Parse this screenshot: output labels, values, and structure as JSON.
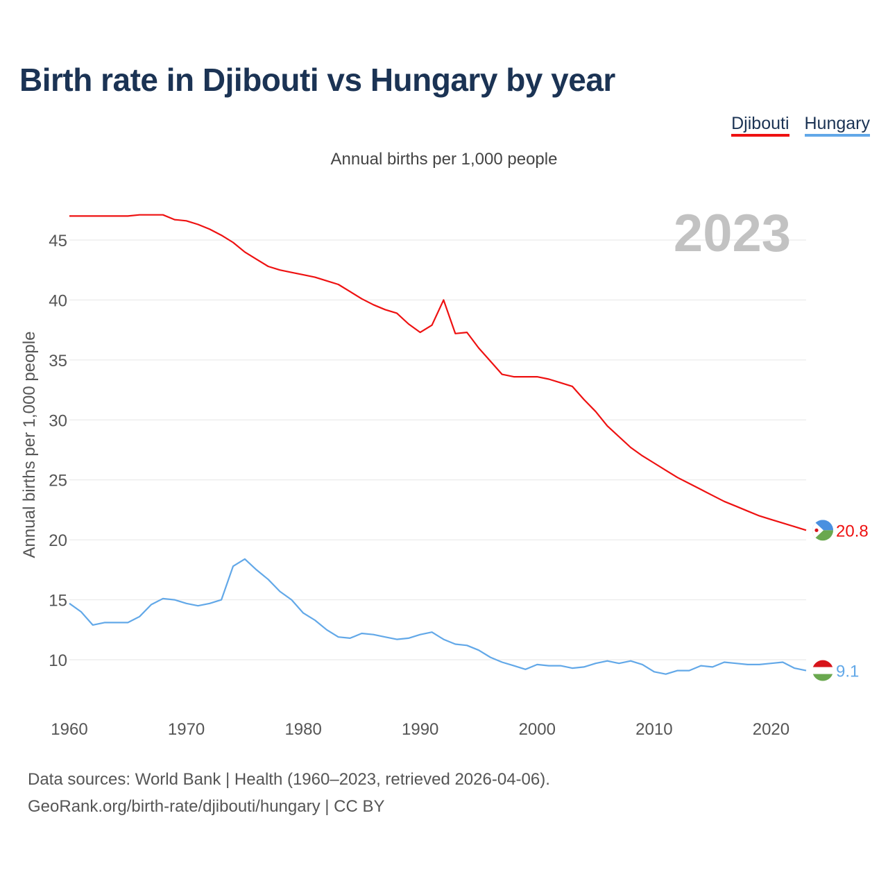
{
  "title": "Birth rate in Djibouti vs Hungary by year",
  "subtitle": "Annual births per 1,000 people",
  "legend": [
    {
      "name": "Djibouti",
      "color": "#ee1111"
    },
    {
      "name": "Hungary",
      "color": "#62a8e8"
    }
  ],
  "footer": {
    "line1": "Data sources: World Bank | Health (1960–2023, retrieved 2026-04-06).",
    "line2": "GeoRank.org/birth-rate/djibouti/hungary | CC BY"
  },
  "chart_data": {
    "type": "line",
    "title": "Birth rate in Djibouti vs Hungary by year",
    "subtitle": "Annual births per 1,000 people",
    "xlabel": "",
    "ylabel": "Annual births per 1,000 people",
    "year_label": "2023",
    "xlim": [
      1960,
      2023
    ],
    "ylim": [
      5,
      48
    ],
    "yticks": [
      10,
      15,
      20,
      25,
      30,
      35,
      40,
      45
    ],
    "xticks": [
      1960,
      1970,
      1980,
      1990,
      2000,
      2010,
      2020
    ],
    "grid": true,
    "legend_position": "top-right",
    "x": [
      1960,
      1961,
      1962,
      1963,
      1964,
      1965,
      1966,
      1967,
      1968,
      1969,
      1970,
      1971,
      1972,
      1973,
      1974,
      1975,
      1976,
      1977,
      1978,
      1979,
      1980,
      1981,
      1982,
      1983,
      1984,
      1985,
      1986,
      1987,
      1988,
      1989,
      1990,
      1991,
      1992,
      1993,
      1994,
      1995,
      1996,
      1997,
      1998,
      1999,
      2000,
      2001,
      2002,
      2003,
      2004,
      2005,
      2006,
      2007,
      2008,
      2009,
      2010,
      2011,
      2012,
      2013,
      2014,
      2015,
      2016,
      2017,
      2018,
      2019,
      2020,
      2021,
      2022,
      2023
    ],
    "series": [
      {
        "name": "Djibouti",
        "color": "#ee1111",
        "end_label": "20.8",
        "values": [
          47.0,
          47.0,
          47.0,
          47.0,
          47.0,
          47.0,
          47.1,
          47.1,
          47.1,
          46.7,
          46.6,
          46.3,
          45.9,
          45.4,
          44.8,
          44.0,
          43.4,
          42.8,
          42.5,
          42.3,
          42.1,
          41.9,
          41.6,
          41.3,
          40.7,
          40.1,
          39.6,
          39.2,
          38.9,
          38.0,
          37.3,
          37.9,
          40.0,
          37.2,
          37.3,
          36.0,
          34.9,
          33.8,
          33.6,
          33.6,
          33.6,
          33.4,
          33.1,
          32.8,
          31.7,
          30.7,
          29.5,
          28.6,
          27.7,
          27.0,
          26.4,
          25.8,
          25.2,
          24.7,
          24.2,
          23.7,
          23.2,
          22.8,
          22.4,
          22.0,
          21.7,
          21.4,
          21.1,
          20.8
        ]
      },
      {
        "name": "Hungary",
        "color": "#62a8e8",
        "end_label": "9.1",
        "values": [
          14.7,
          14.0,
          12.9,
          13.1,
          13.1,
          13.1,
          13.6,
          14.6,
          15.1,
          15.0,
          14.7,
          14.5,
          14.7,
          15.0,
          17.8,
          18.4,
          17.5,
          16.7,
          15.7,
          15.0,
          13.9,
          13.3,
          12.5,
          11.9,
          11.8,
          12.2,
          12.1,
          11.9,
          11.7,
          11.8,
          12.1,
          12.3,
          11.7,
          11.3,
          11.2,
          10.8,
          10.2,
          9.8,
          9.5,
          9.2,
          9.6,
          9.5,
          9.5,
          9.3,
          9.4,
          9.7,
          9.9,
          9.7,
          9.9,
          9.6,
          9.0,
          8.8,
          9.1,
          9.1,
          9.5,
          9.4,
          9.8,
          9.7,
          9.6,
          9.6,
          9.7,
          9.8,
          9.3,
          9.1
        ]
      }
    ]
  }
}
